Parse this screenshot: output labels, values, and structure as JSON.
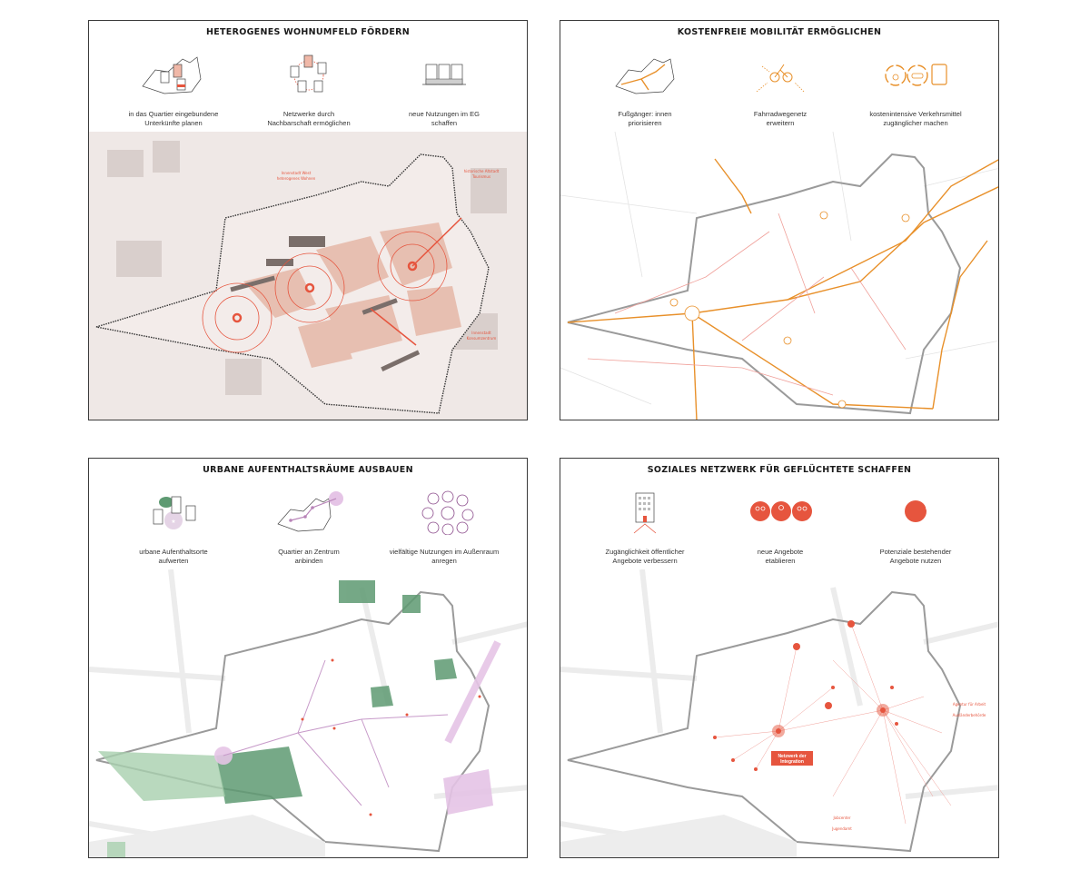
{
  "panels": [
    {
      "title": "HETEROGENES WOHNUMFELD FÖRDERN",
      "items": [
        {
          "icon": "quarter-houses-icon",
          "line1": "in das Quartier eingebundene",
          "line2": "Unterkünfte planen"
        },
        {
          "icon": "neighbourhood-network-icon",
          "line1": "Netzwerke durch",
          "line2": "Nachbarschaft ermöglichen"
        },
        {
          "icon": "ground-floor-buildings-icon",
          "line1": "neue Nutzungen im EG",
          "line2": "schaffen"
        }
      ],
      "map_labels": {
        "a": "Innenstadt West",
        "a2": "heterogenes Wohnen",
        "b": "historische Altstadt",
        "b2": "Tourismus",
        "c": "Innenstadt",
        "c2": "Konsumzentrum"
      }
    },
    {
      "title": "KOSTENFREIE MOBILITÄT ERMÖGLICHEN",
      "items": [
        {
          "icon": "pedestrian-route-icon",
          "line1": "Fußgänger: innen",
          "line2": "priorisieren"
        },
        {
          "icon": "bicycle-network-icon",
          "line1": "Fahrradwegenetz",
          "line2": "erweitern"
        },
        {
          "icon": "transport-modes-icon",
          "line1": "kostenintensive Verkehrsmittel",
          "line2": "zugänglicher machen"
        }
      ]
    },
    {
      "title": "URBANE AUFENTHALTSRÄUME AUSBAUEN",
      "items": [
        {
          "icon": "urban-places-icon",
          "line1": "urbane Aufenthaltsorte",
          "line2": "aufwerten"
        },
        {
          "icon": "connect-centre-icon",
          "line1": "Quartier an Zentrum",
          "line2": "anbinden"
        },
        {
          "icon": "outdoor-uses-icon",
          "line1": "vielfältige Nutzungen im Außenraum",
          "line2": "anregen"
        }
      ]
    },
    {
      "title": "SOZIALES NETZWERK FÜR GEFLÜCHTETE SCHAFFEN",
      "items": [
        {
          "icon": "public-offers-building-icon",
          "line1": "Zugänglichkeit öffentlicher",
          "line2": "Angebote verbessern"
        },
        {
          "icon": "new-offers-icon",
          "line1": "neue Angebote",
          "line2": "etablieren"
        },
        {
          "icon": "existing-potential-icon",
          "line1": "Potenziale bestehender",
          "line2": "Angebote nutzen"
        }
      ],
      "map_labels": {
        "network1": "Netzwerk der",
        "network2": "Integration",
        "agentur": "Agentur für Arbeit",
        "auslaender": "Ausländerbehörde",
        "jobcenter": "Jobcenter",
        "jugendamt": "Jugendamt"
      }
    }
  ],
  "colors": {
    "orange": "#e8902a",
    "red": "#e6553e",
    "green": "#5e9a72",
    "purple": "#b884b8",
    "grey": "#e6e6e6"
  }
}
